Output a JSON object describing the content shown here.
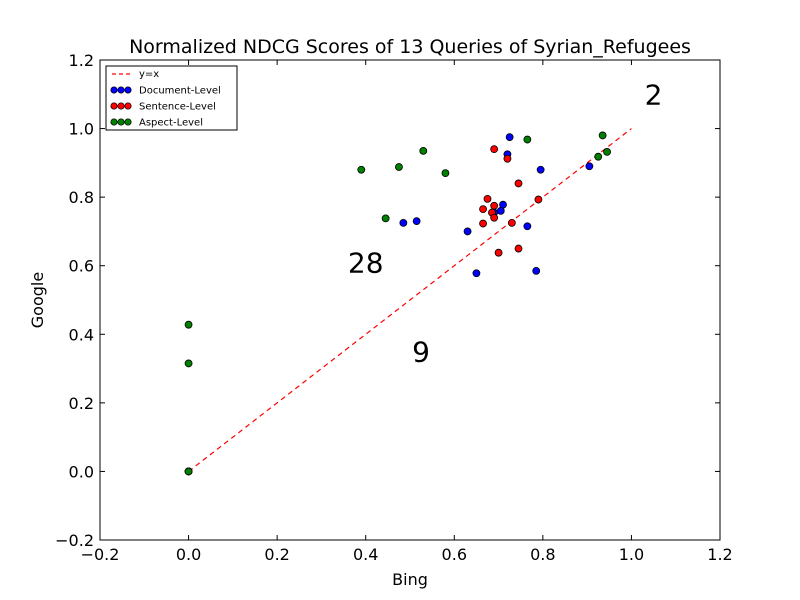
{
  "chart_data": {
    "type": "scatter",
    "title": "Normalized NDCG Scores of 13 Queries of Syrian_Refugees",
    "xlabel": "Bing",
    "ylabel": "Google",
    "xlim": [
      -0.2,
      1.2
    ],
    "ylim": [
      -0.2,
      1.2
    ],
    "xticks": [
      "−0.2",
      "0.0",
      "0.2",
      "0.4",
      "0.6",
      "0.8",
      "1.0",
      "1.2"
    ],
    "yticks": [
      "−0.2",
      "0.0",
      "0.2",
      "0.4",
      "0.6",
      "0.8",
      "1.0",
      "1.2"
    ],
    "grid": false,
    "legend_position": "top-left",
    "reference_line": {
      "label": "y=x",
      "color": "#ff0000",
      "from": [
        0,
        0
      ],
      "to": [
        1,
        1
      ]
    },
    "series": [
      {
        "name": "Document-Level",
        "color": "#0000ff",
        "points": [
          [
            0.725,
            0.975
          ],
          [
            0.72,
            0.925
          ],
          [
            0.795,
            0.88
          ],
          [
            0.905,
            0.89
          ],
          [
            0.71,
            0.778
          ],
          [
            0.705,
            0.76
          ],
          [
            0.69,
            0.755
          ],
          [
            0.765,
            0.715
          ],
          [
            0.515,
            0.73
          ],
          [
            0.485,
            0.725
          ],
          [
            0.63,
            0.7
          ],
          [
            0.65,
            0.578
          ],
          [
            0.785,
            0.585
          ],
          [
            0.0,
            0.0
          ]
        ]
      },
      {
        "name": "Sentence-Level",
        "color": "#ff0000",
        "points": [
          [
            0.69,
            0.94
          ],
          [
            0.72,
            0.912
          ],
          [
            0.745,
            0.84
          ],
          [
            0.675,
            0.795
          ],
          [
            0.79,
            0.793
          ],
          [
            0.69,
            0.775
          ],
          [
            0.665,
            0.765
          ],
          [
            0.685,
            0.755
          ],
          [
            0.69,
            0.74
          ],
          [
            0.665,
            0.723
          ],
          [
            0.73,
            0.725
          ],
          [
            0.745,
            0.65
          ],
          [
            0.7,
            0.638
          ],
          [
            0.0,
            0.0
          ]
        ]
      },
      {
        "name": "Aspect-Level",
        "color": "#008000",
        "points": [
          [
            0.765,
            0.968
          ],
          [
            0.935,
            0.98
          ],
          [
            0.945,
            0.932
          ],
          [
            0.925,
            0.918
          ],
          [
            0.53,
            0.935
          ],
          [
            0.475,
            0.888
          ],
          [
            0.39,
            0.88
          ],
          [
            0.58,
            0.87
          ],
          [
            0.445,
            0.738
          ],
          [
            0.0,
            0.428
          ],
          [
            0.0,
            0.315
          ],
          [
            0.0,
            0.0
          ]
        ]
      }
    ],
    "annotations": [
      {
        "text": "2",
        "x": 1.05,
        "y": 1.07
      },
      {
        "text": "28",
        "x": 0.4,
        "y": 0.58
      },
      {
        "text": "9",
        "x": 0.525,
        "y": 0.32
      }
    ]
  }
}
